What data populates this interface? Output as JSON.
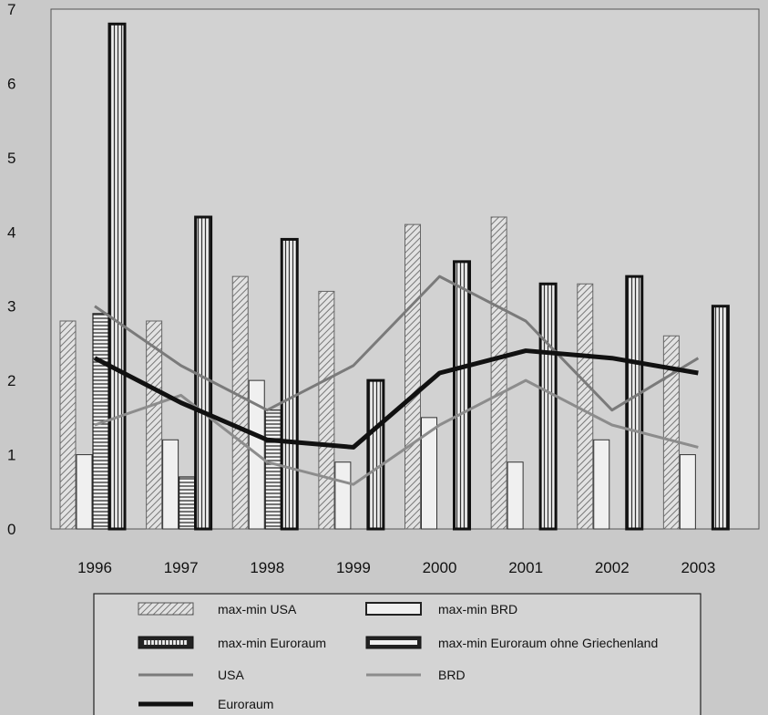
{
  "chart_data": {
    "type": "bar",
    "title": "",
    "xlabel": "",
    "ylabel": "",
    "categories": [
      "1996",
      "1997",
      "1998",
      "1999",
      "2000",
      "2001",
      "2002",
      "2003"
    ],
    "ylim": [
      0,
      7
    ],
    "yticks": [
      0,
      1,
      2,
      3,
      4,
      5,
      6,
      7
    ],
    "grid": false,
    "legend_position": "bottom",
    "bar_series": [
      {
        "name": "max-min USA",
        "pattern": "diagonal",
        "values": [
          2.8,
          2.8,
          3.4,
          3.2,
          4.1,
          4.2,
          3.3,
          2.6
        ]
      },
      {
        "name": "max-min BRD",
        "pattern": "plain",
        "values": [
          1.0,
          1.2,
          2.0,
          0.9,
          1.5,
          0.9,
          1.2,
          1.0
        ]
      },
      {
        "name": "max-min Euroraum",
        "pattern": "horizontal",
        "values": [
          2.9,
          0.7,
          1.6,
          null,
          null,
          null,
          null,
          null
        ]
      },
      {
        "name": "max-min Euroraum ohne Griechenland",
        "pattern": "vertical",
        "values": [
          6.8,
          4.2,
          3.9,
          2.0,
          3.6,
          3.3,
          3.4,
          3.0
        ]
      }
    ],
    "line_series": [
      {
        "name": "USA",
        "color": "#7a7a7a",
        "values": [
          3.0,
          2.2,
          1.6,
          2.2,
          3.4,
          2.8,
          1.6,
          2.3
        ]
      },
      {
        "name": "BRD",
        "color": "#8c8c8c",
        "values": [
          1.4,
          1.8,
          0.9,
          0.6,
          1.4,
          2.0,
          1.4,
          1.1
        ]
      },
      {
        "name": "Euroraum",
        "color": "#111111",
        "values": [
          2.3,
          1.7,
          1.2,
          1.1,
          2.1,
          2.4,
          2.3,
          2.1
        ]
      }
    ]
  }
}
